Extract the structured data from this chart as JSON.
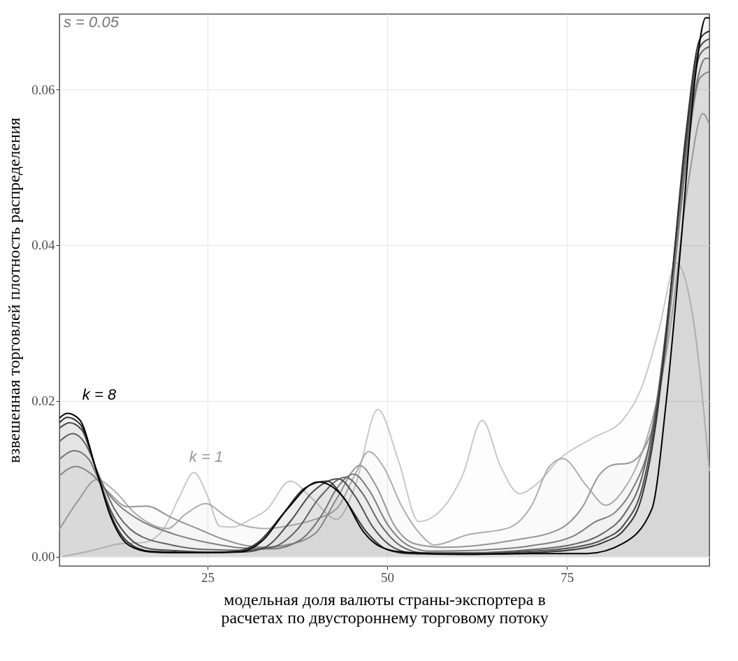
{
  "chart_data": {
    "type": "area",
    "xlabel": "модельная доля валюты страны-экспортера в расчетах по двустороннему торговому потоку",
    "ylabel": "взвешенная торговлей плотность распределения",
    "xlim": [
      4.4,
      94.8
    ],
    "xticks": [
      25,
      50,
      75
    ],
    "ylim": [
      -0.0012,
      0.0697
    ],
    "yticks": [
      {
        "value": 0,
        "label": "0.00"
      },
      {
        "value": 0.02,
        "label": "0.02"
      },
      {
        "value": 0.04,
        "label": "0.04"
      },
      {
        "value": 0.06,
        "label": "0.06"
      }
    ],
    "grid": true,
    "annotations": [
      "s = 0.05",
      "k = 8",
      "k = 1"
    ],
    "series": [
      {
        "color": "#c8c8c8",
        "x": [
          4.8,
          9,
          13.2,
          16,
          18.7,
          21,
          23.1,
          25,
          26.7,
          28.5,
          31,
          33.2,
          36.5,
          39.5,
          43,
          45.5,
          48.7,
          51.5,
          54.4,
          57.8,
          60.5,
          63.2,
          65.8,
          68.4,
          71,
          73.9,
          78.5,
          82.8,
          85.5,
          87.8,
          90.2,
          92.8,
          94.8
        ],
        "values": [
          0,
          0.0008,
          0.0017,
          0.0018,
          0.0033,
          0.0075,
          0.0108,
          0.0078,
          0.0039,
          0.0038,
          0.0048,
          0.006,
          0.0097,
          0.0075,
          0.0048,
          0.009,
          0.0189,
          0.0125,
          0.0045,
          0.0063,
          0.0105,
          0.0175,
          0.0115,
          0.0081,
          0.0095,
          0.0125,
          0.0152,
          0.0176,
          0.022,
          0.0292,
          0.0377,
          0.029,
          0.011
        ]
      },
      {
        "color": "#adadad",
        "x": [
          4.4,
          7,
          9.6,
          12,
          15,
          19.4,
          22,
          24.8,
          27.5,
          30,
          33.2,
          36.5,
          40,
          43,
          45.5,
          47.4,
          49.5,
          52,
          54.5,
          56.6,
          61.1,
          66.9,
          70.1,
          72.5,
          74.4,
          77.8,
          80.4,
          82.8,
          85.3,
          87.5,
          89.3,
          91.8,
          93.9,
          94.8
        ],
        "values": [
          0.0035,
          0.0072,
          0.0099,
          0.0085,
          0.0055,
          0.0036,
          0.0055,
          0.0068,
          0.0052,
          0.004,
          0.0036,
          0.004,
          0.0048,
          0.0062,
          0.0105,
          0.0135,
          0.0115,
          0.0065,
          0.003,
          0.0015,
          0.0028,
          0.0037,
          0.0066,
          0.0115,
          0.0126,
          0.009,
          0.0066,
          0.0085,
          0.013,
          0.02,
          0.029,
          0.0476,
          0.0569,
          0.0555
        ]
      },
      {
        "color": "#969696",
        "x": [
          4.4,
          6.7,
          9,
          11,
          13.9,
          16.5,
          20,
          23.6,
          27,
          30,
          33,
          36,
          40,
          43,
          46.2,
          48.5,
          51,
          54,
          57.8,
          67.5,
          73.9,
          77.1,
          79.5,
          81.4,
          83.5,
          85.5,
          87.5,
          89.5,
          91.5,
          93.5,
          94.8
        ],
        "values": [
          0.0104,
          0.0116,
          0.0105,
          0.0085,
          0.0064,
          0.0065,
          0.005,
          0.0036,
          0.0023,
          0.0015,
          0.0012,
          0.0015,
          0.003,
          0.0075,
          0.0117,
          0.009,
          0.004,
          0.0016,
          0.0012,
          0.0021,
          0.0035,
          0.0063,
          0.0105,
          0.0118,
          0.012,
          0.0135,
          0.019,
          0.033,
          0.05,
          0.0615,
          0.0623
        ]
      },
      {
        "color": "#7f7f7f",
        "x": [
          4.4,
          6.5,
          8.5,
          10,
          12,
          15,
          20,
          25,
          30,
          34,
          38,
          41,
          43,
          45.3,
          47.5,
          50,
          53,
          56,
          62,
          70,
          76,
          79,
          81.7,
          84,
          86.5,
          88.5,
          90.5,
          92.5,
          94.3,
          94.8
        ],
        "values": [
          0.0125,
          0.0136,
          0.0125,
          0.0097,
          0.0072,
          0.005,
          0.003,
          0.0018,
          0.0011,
          0.001,
          0.0022,
          0.0055,
          0.0088,
          0.0106,
          0.0085,
          0.0042,
          0.0014,
          0.0007,
          0.0008,
          0.0014,
          0.0027,
          0.0045,
          0.0057,
          0.0085,
          0.0145,
          0.025,
          0.042,
          0.058,
          0.064,
          0.064
        ]
      },
      {
        "color": "#666666",
        "x": [
          4.4,
          6.3,
          8,
          10,
          12,
          15,
          20,
          25,
          30,
          34,
          37.5,
          40.5,
          44.2,
          46.5,
          49,
          52,
          55,
          62,
          70,
          76,
          80,
          83,
          85.5,
          87.5,
          89.5,
          91.5,
          93.5,
          94.8
        ],
        "values": [
          0.0148,
          0.0158,
          0.0145,
          0.0102,
          0.0062,
          0.003,
          0.0015,
          0.0009,
          0.0008,
          0.0012,
          0.0035,
          0.0075,
          0.0102,
          0.0082,
          0.0042,
          0.0013,
          0.0005,
          0.0005,
          0.0009,
          0.0016,
          0.003,
          0.0055,
          0.0105,
          0.02,
          0.035,
          0.052,
          0.0645,
          0.0655
        ]
      },
      {
        "color": "#4d4d4d",
        "x": [
          4.4,
          5.8,
          7.5,
          9.5,
          11.5,
          14,
          17,
          20,
          25,
          30,
          33,
          36.5,
          39.5,
          43.2,
          45.5,
          48,
          51,
          54,
          62,
          70,
          76,
          80,
          83,
          85.5,
          87.5,
          89.5,
          91.5,
          93.5,
          94.8
        ],
        "values": [
          0.0165,
          0.0172,
          0.0163,
          0.0112,
          0.006,
          0.0025,
          0.001,
          0.0008,
          0.0006,
          0.0006,
          0.0012,
          0.0045,
          0.0082,
          0.01,
          0.0078,
          0.0038,
          0.0011,
          0.0004,
          0.0004,
          0.0007,
          0.0012,
          0.0022,
          0.0042,
          0.009,
          0.019,
          0.035,
          0.053,
          0.0655,
          0.0665
        ]
      },
      {
        "color": "#333333",
        "x": [
          4.4,
          5.5,
          7.3,
          9.5,
          11.5,
          14,
          17,
          20,
          25,
          29,
          32,
          35.5,
          38.5,
          41.6,
          44,
          47,
          50,
          53,
          62,
          70,
          76,
          80,
          83,
          85.5,
          87.5,
          89.5,
          91.5,
          93.5,
          94.8
        ],
        "values": [
          0.0172,
          0.0179,
          0.017,
          0.0112,
          0.0055,
          0.0018,
          0.0007,
          0.0006,
          0.0005,
          0.0007,
          0.0018,
          0.0055,
          0.0088,
          0.0097,
          0.0075,
          0.0033,
          0.0009,
          0.0004,
          0.0003,
          0.0005,
          0.0009,
          0.0018,
          0.0035,
          0.008,
          0.018,
          0.035,
          0.054,
          0.0665,
          0.0675
        ]
      },
      {
        "color": "#000000",
        "x": [
          4.4,
          5.5,
          7.2,
          9.5,
          11.5,
          14,
          17.1,
          20,
          25,
          29.5,
          32.7,
          36,
          40.4,
          44,
          46.6,
          48.8,
          52,
          60,
          70,
          77.8,
          82.8,
          86.8,
          88.8,
          90.8,
          92.8,
          94.3,
          94.8
        ],
        "values": [
          0.0178,
          0.0184,
          0.0176,
          0.0112,
          0.0052,
          0.0015,
          0.0006,
          0.0005,
          0.0005,
          0.0006,
          0.0021,
          0.006,
          0.0096,
          0.0075,
          0.0033,
          0.0014,
          0.0006,
          0.0003,
          0.0004,
          0.0004,
          0.0017,
          0.0061,
          0.0199,
          0.0397,
          0.0613,
          0.0692,
          0.0692
        ]
      }
    ]
  }
}
